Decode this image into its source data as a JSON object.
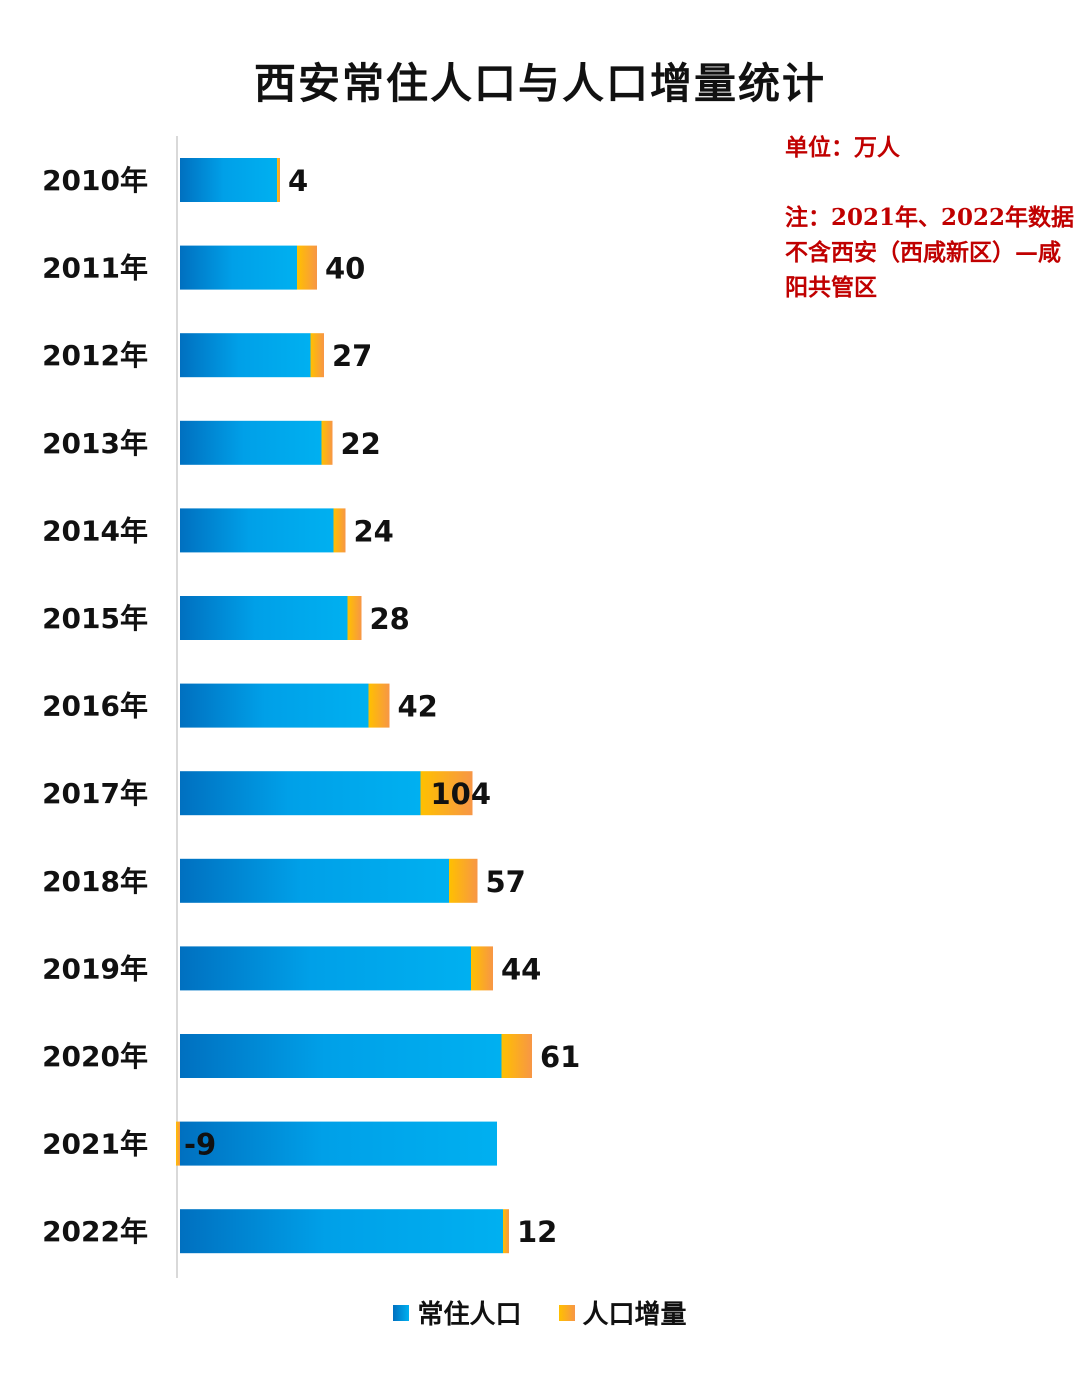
{
  "chart_data": {
    "type": "bar",
    "orientation": "horizontal",
    "stacked": true,
    "title": "西安常住人口与人口增量统计",
    "unit": "单位：万人",
    "note": "注：2021年、2022年数据不含西安（西咸新区）—咸阳共管区",
    "categories": [
      "2010年",
      "2011年",
      "2012年",
      "2013年",
      "2014年",
      "2015年",
      "2016年",
      "2017年",
      "2018年",
      "2019年",
      "2020年",
      "2021年",
      "2022年"
    ],
    "series": [
      {
        "name": "常住人口",
        "color": "#00b0f0",
        "gradient_start": "#0070c0",
        "values": [
          847,
          887,
          914,
          936,
          960,
          988,
          1030,
          1134,
          1191,
          1235,
          1296,
          1287,
          1299
        ]
      },
      {
        "name": "人口增量",
        "color": "#ffc000",
        "gradient_end": "#f79646",
        "values": [
          4,
          40,
          27,
          22,
          24,
          28,
          42,
          104,
          57,
          44,
          61,
          -9,
          12
        ]
      }
    ],
    "data_labels": [
      "4",
      "40",
      "27",
      "22",
      "24",
      "28",
      "42",
      "104",
      "57",
      "44",
      "61",
      "-9",
      "12"
    ],
    "legend_position": "bottom",
    "grid": false
  }
}
